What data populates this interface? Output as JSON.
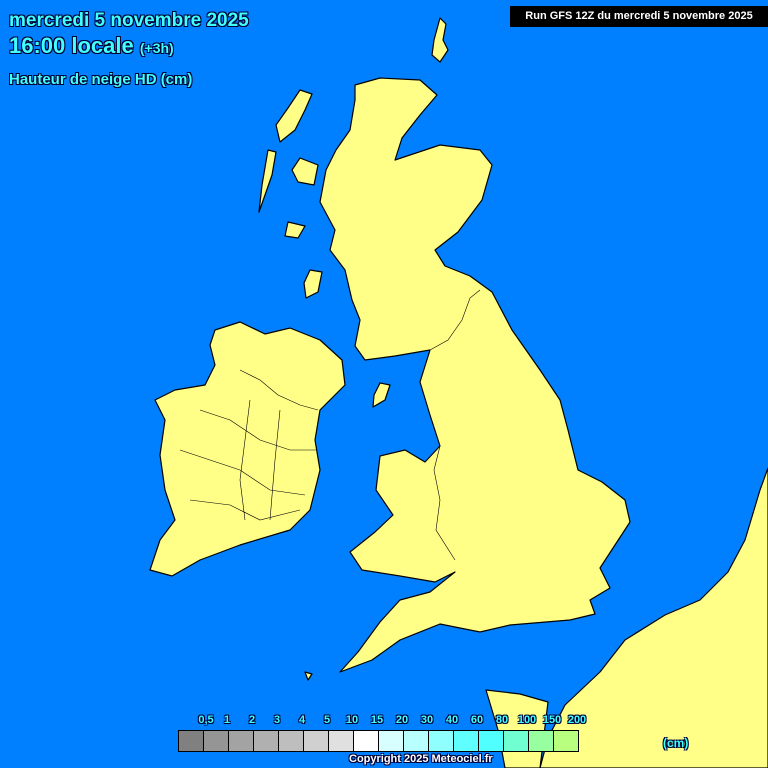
{
  "header": {
    "date": "mercredi 5 novembre 2025",
    "time": "16:00 locale",
    "offset": "(+3h)",
    "parameter": "Hauteur de neige HD (cm)",
    "run": "Run GFS 12Z du mercredi 5 novembre 2025"
  },
  "map": {
    "region": "British Isles",
    "sea_color": "#0080ff",
    "land_color": "#ffff88",
    "snow_depth_shown": "none"
  },
  "legend": {
    "labels": [
      "0,5",
      "1",
      "2",
      "3",
      "4",
      "5",
      "10",
      "15",
      "20",
      "30",
      "40",
      "60",
      "80",
      "100",
      "150",
      "200"
    ],
    "colors": [
      "#808080",
      "#959595",
      "#a3a3a3",
      "#b0b0b0",
      "#bebebe",
      "#d0d0d0",
      "#e0e0e0",
      "#ffffff",
      "#d8ffff",
      "#b8ffff",
      "#90ffff",
      "#60ffff",
      "#50ffff",
      "#70ffd0",
      "#98ffa0",
      "#b8ff80"
    ],
    "unit": "(cm)"
  },
  "footer": {
    "copyright": "Copyright 2025 Meteociel.fr"
  }
}
